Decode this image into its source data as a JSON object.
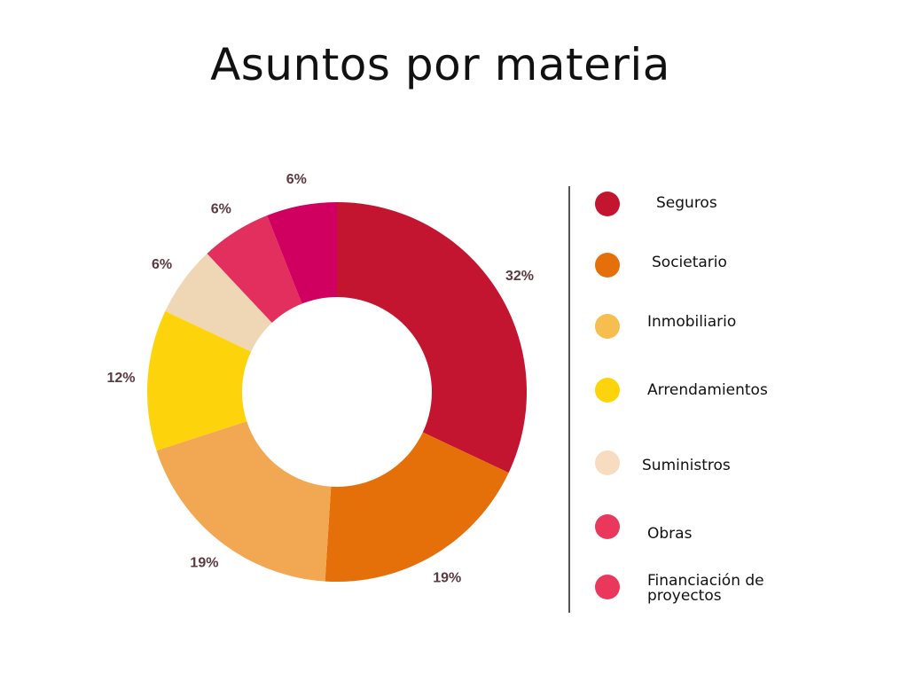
{
  "chart_data": {
    "type": "pie",
    "title": "Asuntos por materia",
    "slices": [
      {
        "label": "Seguros",
        "value": 32,
        "display": "32%",
        "color": "#c41530"
      },
      {
        "label": "Societario",
        "value": 19,
        "display": "19%",
        "color": "#e5700a"
      },
      {
        "label": "Inmobiliario",
        "value": 19,
        "display": "19%",
        "color": "#f2a853"
      },
      {
        "label": "Arrendamientos",
        "value": 12,
        "display": "12%",
        "color": "#fdd40c"
      },
      {
        "label": "Suministros",
        "value": 6,
        "display": "6%",
        "color": "#efd6b5"
      },
      {
        "label": "Obras",
        "value": 6,
        "display": "6%",
        "color": "#e32f5d"
      },
      {
        "label": "Financiación de proyectos",
        "value": 6,
        "display": "6%",
        "color": "#cf0060"
      }
    ],
    "legend": {
      "placement": "right",
      "items": [
        {
          "label": "Seguros",
          "color": "#c41530"
        },
        {
          "label": "Societario",
          "color": "#e5700a"
        },
        {
          "label": "Inmobiliario",
          "color": "#f7bd4f"
        },
        {
          "label": "Arrendamientos",
          "color": "#fdd40c"
        },
        {
          "label": "Suministros",
          "color": "#f7dcc2"
        },
        {
          "label": "Obras",
          "color": "#e9385b"
        },
        {
          "label": "Financiación de\nproyectos",
          "color": "#e9385b"
        }
      ]
    }
  }
}
